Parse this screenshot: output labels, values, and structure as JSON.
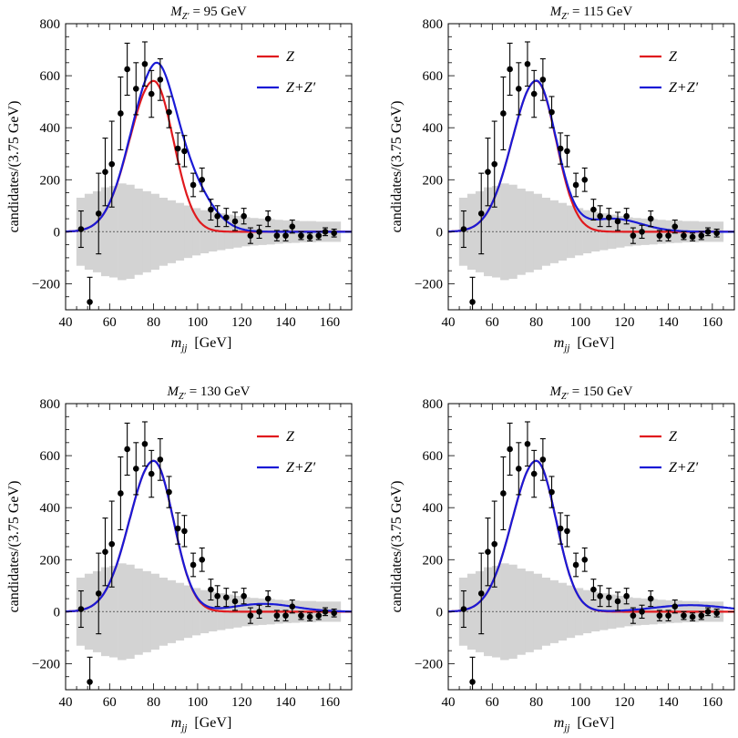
{
  "figure": {
    "ylabel": "candidates/(3.75 GeV)",
    "xlabel_main": "m",
    "xlabel_sub": "jj",
    "xlabel_unit": "[GeV]",
    "colors": {
      "z": "#e0191d",
      "zzp": "#1a1ad6",
      "band": "#d3d3d3",
      "points": "#000000"
    }
  },
  "chart_data": [
    {
      "type": "line",
      "title_prefix": "M",
      "title_sub": "Z′",
      "title_value": "= 95 GeV",
      "mzp": 95,
      "xlim": [
        40,
        170
      ],
      "ylim": [
        -300,
        800
      ],
      "xticks": [
        40,
        60,
        80,
        100,
        120,
        140,
        160
      ],
      "yticks": [
        -200,
        0,
        200,
        400,
        600,
        800
      ],
      "xtick_labels": [
        "40",
        "60",
        "80",
        "100",
        "120",
        "140",
        "160"
      ],
      "ytick_labels": [
        "−200",
        "0",
        "200",
        "400",
        "600",
        "800"
      ],
      "legend": [
        {
          "label": "Z",
          "series": "z"
        },
        {
          "label": "Z+Z′",
          "series": "zzp"
        }
      ],
      "zprime_peak": 180
    },
    {
      "type": "line",
      "title_prefix": "M",
      "title_sub": "Z′",
      "title_value": "= 115 GeV",
      "mzp": 115,
      "xlim": [
        40,
        170
      ],
      "ylim": [
        -300,
        800
      ],
      "xticks": [
        40,
        60,
        80,
        100,
        120,
        140,
        160
      ],
      "yticks": [
        -200,
        0,
        200,
        400,
        600,
        800
      ],
      "xtick_labels": [
        "40",
        "60",
        "80",
        "100",
        "120",
        "140",
        "160"
      ],
      "ytick_labels": [
        "−200",
        "0",
        "200",
        "400",
        "600",
        "800"
      ],
      "legend": [
        {
          "label": "Z",
          "series": "z"
        },
        {
          "label": "Z+Z′",
          "series": "zzp"
        }
      ],
      "zprime_peak": 50
    },
    {
      "type": "line",
      "title_prefix": "M",
      "title_sub": "Z′",
      "title_value": "= 130 GeV",
      "mzp": 130,
      "xlim": [
        40,
        170
      ],
      "ylim": [
        -300,
        800
      ],
      "xticks": [
        40,
        60,
        80,
        100,
        120,
        140,
        160
      ],
      "yticks": [
        -200,
        0,
        200,
        400,
        600,
        800
      ],
      "xtick_labels": [
        "40",
        "60",
        "80",
        "100",
        "120",
        "140",
        "160"
      ],
      "ytick_labels": [
        "−200",
        "0",
        "200",
        "400",
        "600",
        "800"
      ],
      "legend": [
        {
          "label": "Z",
          "series": "z"
        },
        {
          "label": "Z+Z′",
          "series": "zzp"
        }
      ],
      "zprime_peak": 30
    },
    {
      "type": "line",
      "title_prefix": "M",
      "title_sub": "Z′",
      "title_value": "= 150 GeV",
      "mzp": 150,
      "xlim": [
        40,
        170
      ],
      "ylim": [
        -300,
        800
      ],
      "xticks": [
        40,
        60,
        80,
        100,
        120,
        140,
        160
      ],
      "yticks": [
        -200,
        0,
        200,
        400,
        600,
        800
      ],
      "xtick_labels": [
        "40",
        "60",
        "80",
        "100",
        "120",
        "140",
        "160"
      ],
      "ytick_labels": [
        "−200",
        "0",
        "200",
        "400",
        "600",
        "800"
      ],
      "legend": [
        {
          "label": "Z",
          "series": "z"
        },
        {
          "label": "Z+Z′",
          "series": "zzp"
        }
      ],
      "zprime_peak": 25
    }
  ],
  "shared_data": {
    "z_peak": {
      "mass": 80,
      "amplitude": 580,
      "sigma_low": 11,
      "sigma_high": 9
    },
    "points": [
      {
        "x": 47,
        "y": 10,
        "err": 70
      },
      {
        "x": 51,
        "y": -270,
        "err": 95
      },
      {
        "x": 55,
        "y": 70,
        "err": 155
      },
      {
        "x": 58,
        "y": 230,
        "err": 130
      },
      {
        "x": 61,
        "y": 260,
        "err": 165
      },
      {
        "x": 65,
        "y": 455,
        "err": 140
      },
      {
        "x": 68,
        "y": 625,
        "err": 100
      },
      {
        "x": 72,
        "y": 550,
        "err": 100
      },
      {
        "x": 76,
        "y": 645,
        "err": 85
      },
      {
        "x": 79,
        "y": 530,
        "err": 90
      },
      {
        "x": 83,
        "y": 585,
        "err": 80
      },
      {
        "x": 87,
        "y": 460,
        "err": 60
      },
      {
        "x": 91,
        "y": 320,
        "err": 60
      },
      {
        "x": 94,
        "y": 310,
        "err": 60
      },
      {
        "x": 98,
        "y": 180,
        "err": 45
      },
      {
        "x": 102,
        "y": 200,
        "err": 45
      },
      {
        "x": 106,
        "y": 85,
        "err": 40
      },
      {
        "x": 109,
        "y": 60,
        "err": 40
      },
      {
        "x": 113,
        "y": 55,
        "err": 35
      },
      {
        "x": 117,
        "y": 40,
        "err": 35
      },
      {
        "x": 121,
        "y": 60,
        "err": 30
      },
      {
        "x": 124,
        "y": -15,
        "err": 30
      },
      {
        "x": 128,
        "y": 0,
        "err": 25
      },
      {
        "x": 132,
        "y": 50,
        "err": 30
      },
      {
        "x": 136,
        "y": -15,
        "err": 20
      },
      {
        "x": 140,
        "y": -15,
        "err": 20
      },
      {
        "x": 143,
        "y": 20,
        "err": 25
      },
      {
        "x": 147,
        "y": -15,
        "err": 15
      },
      {
        "x": 151,
        "y": -20,
        "err": 15
      },
      {
        "x": 155,
        "y": -15,
        "err": 15
      },
      {
        "x": 158,
        "y": 0,
        "err": 15
      },
      {
        "x": 162,
        "y": -5,
        "err": 15
      }
    ],
    "band": [
      {
        "x0": 45,
        "x1": 48.75,
        "h": 130
      },
      {
        "x0": 48.75,
        "x1": 52.5,
        "h": 145
      },
      {
        "x0": 52.5,
        "x1": 56.25,
        "h": 155
      },
      {
        "x0": 56.25,
        "x1": 60,
        "h": 170
      },
      {
        "x0": 60,
        "x1": 63.75,
        "h": 175
      },
      {
        "x0": 63.75,
        "x1": 67.5,
        "h": 185
      },
      {
        "x0": 67.5,
        "x1": 71.25,
        "h": 180
      },
      {
        "x0": 71.25,
        "x1": 75,
        "h": 165
      },
      {
        "x0": 75,
        "x1": 78.75,
        "h": 155
      },
      {
        "x0": 78.75,
        "x1": 82.5,
        "h": 145
      },
      {
        "x0": 82.5,
        "x1": 86.25,
        "h": 130
      },
      {
        "x0": 86.25,
        "x1": 90,
        "h": 120
      },
      {
        "x0": 90,
        "x1": 93.75,
        "h": 110
      },
      {
        "x0": 93.75,
        "x1": 97.5,
        "h": 100
      },
      {
        "x0": 97.5,
        "x1": 101.25,
        "h": 90
      },
      {
        "x0": 101.25,
        "x1": 105,
        "h": 82
      },
      {
        "x0": 105,
        "x1": 108.75,
        "h": 75
      },
      {
        "x0": 108.75,
        "x1": 112.5,
        "h": 70
      },
      {
        "x0": 112.5,
        "x1": 116.25,
        "h": 65
      },
      {
        "x0": 116.25,
        "x1": 120,
        "h": 60
      },
      {
        "x0": 120,
        "x1": 123.75,
        "h": 55
      },
      {
        "x0": 123.75,
        "x1": 127.5,
        "h": 52
      },
      {
        "x0": 127.5,
        "x1": 131.25,
        "h": 50
      },
      {
        "x0": 131.25,
        "x1": 135,
        "h": 48
      },
      {
        "x0": 135,
        "x1": 138.75,
        "h": 45
      },
      {
        "x0": 138.75,
        "x1": 142.5,
        "h": 43
      },
      {
        "x0": 142.5,
        "x1": 146.25,
        "h": 42
      },
      {
        "x0": 146.25,
        "x1": 150,
        "h": 40
      },
      {
        "x0": 150,
        "x1": 153.75,
        "h": 40
      },
      {
        "x0": 153.75,
        "x1": 157.5,
        "h": 38
      },
      {
        "x0": 157.5,
        "x1": 161.25,
        "h": 38
      },
      {
        "x0": 161.25,
        "x1": 165,
        "h": 38
      }
    ]
  }
}
